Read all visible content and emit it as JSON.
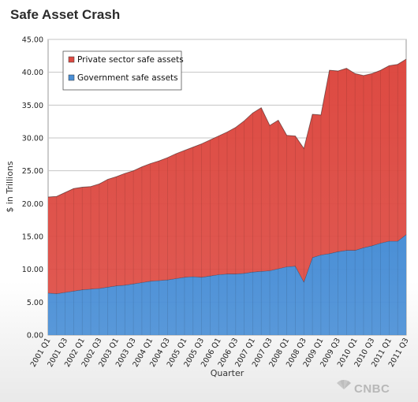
{
  "chart_data": {
    "type": "area",
    "stacked": true,
    "title": "Safe Asset Crash",
    "xlabel": "Quarter",
    "ylabel": "$ in Trillions",
    "ylim": [
      0,
      45
    ],
    "yticks": [
      0,
      5,
      10,
      15,
      20,
      25,
      30,
      35,
      40,
      45
    ],
    "ytick_labels": [
      "0.00",
      "5.00",
      "10.00",
      "15.00",
      "20.00",
      "25.00",
      "30.00",
      "35.00",
      "40.00",
      "45.00"
    ],
    "grid": true,
    "legend_position": "top-left",
    "categories": [
      "2001 Q1",
      "2001 Q2",
      "2001 Q3",
      "2001 Q4",
      "2002 Q1",
      "2002 Q2",
      "2002 Q3",
      "2002 Q4",
      "2003 Q1",
      "2003 Q2",
      "2003 Q3",
      "2003 Q4",
      "2004 Q1",
      "2004 Q2",
      "2004 Q3",
      "2004 Q4",
      "2005 Q1",
      "2005 Q2",
      "2005 Q3",
      "2005 Q4",
      "2006 Q1",
      "2006 Q2",
      "2006 Q3",
      "2006 Q4",
      "2007 Q1",
      "2007 Q2",
      "2007 Q3",
      "2007 Q4",
      "2008 Q1",
      "2008 Q2",
      "2008 Q3",
      "2008 Q4",
      "2009 Q1",
      "2009 Q2",
      "2009 Q3",
      "2009 Q4",
      "2010 Q1",
      "2010 Q2",
      "2010 Q3",
      "2010 Q4",
      "2011 Q1",
      "2011 Q2",
      "2011 Q3"
    ],
    "tick_labels": [
      "2001 Q1",
      "2001 Q3",
      "2002 Q1",
      "2002 Q3",
      "2003 Q1",
      "2003 Q3",
      "2004 Q1",
      "2004 Q3",
      "2005 Q1",
      "2005 Q3",
      "2006 Q1",
      "2006 Q3",
      "2007 Q1",
      "2007 Q3",
      "2008 Q1",
      "2008 Q3",
      "2009 Q1",
      "2009 Q3",
      "2010 Q1",
      "2010 Q3",
      "2011 Q1",
      "2011 Q3"
    ],
    "series": [
      {
        "name": "Government safe assets",
        "color": "#4a8fd6",
        "values": [
          6.4,
          6.3,
          6.5,
          6.7,
          6.9,
          7.0,
          7.1,
          7.3,
          7.5,
          7.6,
          7.8,
          8.0,
          8.2,
          8.3,
          8.4,
          8.6,
          8.8,
          8.9,
          8.8,
          9.0,
          9.2,
          9.3,
          9.3,
          9.4,
          9.6,
          9.7,
          9.8,
          10.1,
          10.4,
          10.5,
          8.1,
          11.8,
          12.2,
          12.4,
          12.7,
          12.9,
          12.9,
          13.3,
          13.6,
          14.0,
          14.3,
          14.3,
          15.3
        ]
      },
      {
        "name": "Private sector safe assets",
        "color": "#dd4a42",
        "values": [
          14.6,
          14.8,
          15.2,
          15.6,
          15.6,
          15.6,
          15.9,
          16.4,
          16.6,
          17.0,
          17.2,
          17.6,
          17.9,
          18.2,
          18.6,
          19.0,
          19.3,
          19.7,
          20.3,
          20.7,
          21.1,
          21.6,
          22.3,
          23.2,
          24.2,
          24.9,
          22.1,
          22.6,
          20.0,
          19.8,
          20.3,
          21.8,
          21.3,
          27.9,
          27.5,
          27.7,
          26.9,
          26.2,
          26.2,
          26.3,
          26.7,
          26.9,
          26.7
        ]
      }
    ]
  },
  "watermark": "CNBC"
}
